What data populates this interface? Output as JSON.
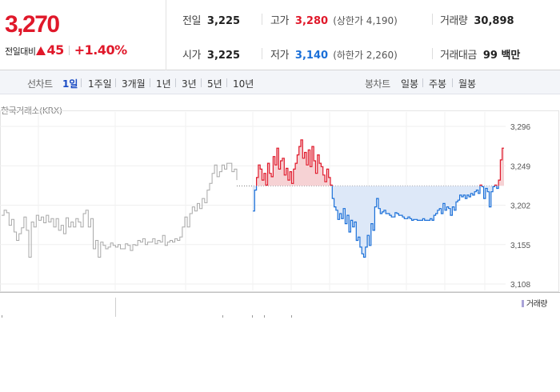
{
  "quote": {
    "price": "3,270",
    "change_label": "전일대비",
    "change_amount": "45",
    "change_rate": "+1.40%",
    "colors": {
      "up": "#e0182a",
      "down": "#1a6fd8"
    }
  },
  "stats": {
    "prev_close": {
      "label": "전일",
      "value": "3,225"
    },
    "open": {
      "label": "시가",
      "value": "3,225"
    },
    "high": {
      "label": "고가",
      "value": "3,280",
      "sub": "(상한가 4,190)"
    },
    "low": {
      "label": "저가",
      "value": "3,140",
      "sub": "(하한가 2,260)"
    },
    "volume": {
      "label": "거래량",
      "value": "30,898"
    },
    "amount": {
      "label": "거래대금",
      "value": "99 백만"
    }
  },
  "toolbar": {
    "line_label": "선차트",
    "line_periods": [
      "1일",
      "1주일",
      "3개월",
      "1년",
      "3년",
      "5년",
      "10년"
    ],
    "selected_line_period": "1일",
    "candle_label": "봉차트",
    "candle_periods": [
      "일봉",
      "주봉",
      "월봉"
    ]
  },
  "chart": {
    "source": "한국거래소(KRX)",
    "volume_legend": "거래량"
  },
  "chart_data": {
    "type": "line",
    "ylim": [
      3108,
      3296
    ],
    "yticks": [
      "3,296",
      "3,249",
      "3,202",
      "3,155",
      "3,108"
    ],
    "baseline": 3225,
    "series": [
      {
        "values": [
          3190,
          3196,
          3193,
          3178,
          3185,
          3170,
          3160,
          3168,
          3175,
          3188,
          3172,
          3140,
          3182,
          3176,
          3190,
          3184,
          3188,
          3181,
          3190,
          3182,
          3186,
          3176,
          3186,
          3172,
          3178,
          3168,
          3187,
          3176,
          3182,
          3176,
          3186,
          3182,
          3176,
          3192,
          3196,
          3176,
          3186,
          3150,
          3160,
          3140,
          3158,
          3154,
          3150,
          3152,
          3157,
          3154,
          3152,
          3155,
          3150,
          3150,
          3156,
          3154,
          3148,
          3155,
          3154,
          3160,
          3158,
          3162,
          3155,
          3158,
          3158,
          3162,
          3156,
          3160,
          3158,
          3166,
          3154,
          3158,
          3160,
          3158,
          3162,
          3160,
          3164,
          3176,
          3188,
          3176,
          3192,
          3200,
          3195,
          3204,
          3198,
          3210,
          3205,
          3220,
          3228,
          3240,
          3250,
          3236,
          3242,
          3250,
          3245,
          3252,
          3252,
          3242,
          3245,
          3232
        ],
        "color": "#a8a8a8"
      },
      {
        "values": [
          3195,
          3220,
          3235,
          3250,
          3245,
          3232,
          3240,
          3226,
          3252,
          3240,
          3236,
          3260,
          3250,
          3270,
          3245,
          3255,
          3258,
          3238,
          3246,
          3232,
          3242,
          3228,
          3245,
          3252,
          3262,
          3272,
          3280,
          3258,
          3265,
          3250,
          3268,
          3248,
          3272,
          3255,
          3240,
          3262,
          3252,
          3248,
          3238,
          3230,
          3245,
          3235,
          3226,
          3210,
          3200,
          3196,
          3185,
          3192,
          3186,
          3198,
          3180,
          3190,
          3170,
          3184,
          3176,
          3182,
          3160,
          3164,
          3152,
          3144,
          3140,
          3152,
          3166,
          3154,
          3180,
          3172,
          3200,
          3210,
          3198,
          3192,
          3194,
          3196,
          3192,
          3192,
          3190,
          3188,
          3188,
          3193,
          3192,
          3190,
          3190,
          3188,
          3186,
          3186,
          3188,
          3186,
          3184,
          3185,
          3185,
          3184,
          3184,
          3184,
          3186,
          3184,
          3184,
          3184,
          3186,
          3184,
          3190,
          3192,
          3196,
          3198,
          3192,
          3204,
          3196,
          3200,
          3198,
          3190,
          3200,
          3196,
          3206,
          3208,
          3214,
          3212,
          3214,
          3210,
          3214,
          3212,
          3216,
          3214,
          3218,
          3220,
          3216,
          3226,
          3224,
          3210,
          3222,
          3218,
          3200,
          3218,
          3224,
          3226,
          3222,
          3232,
          3256,
          3270,
          3270
        ],
        "color": "#e0182a"
      }
    ],
    "volume_label": "거래량"
  }
}
